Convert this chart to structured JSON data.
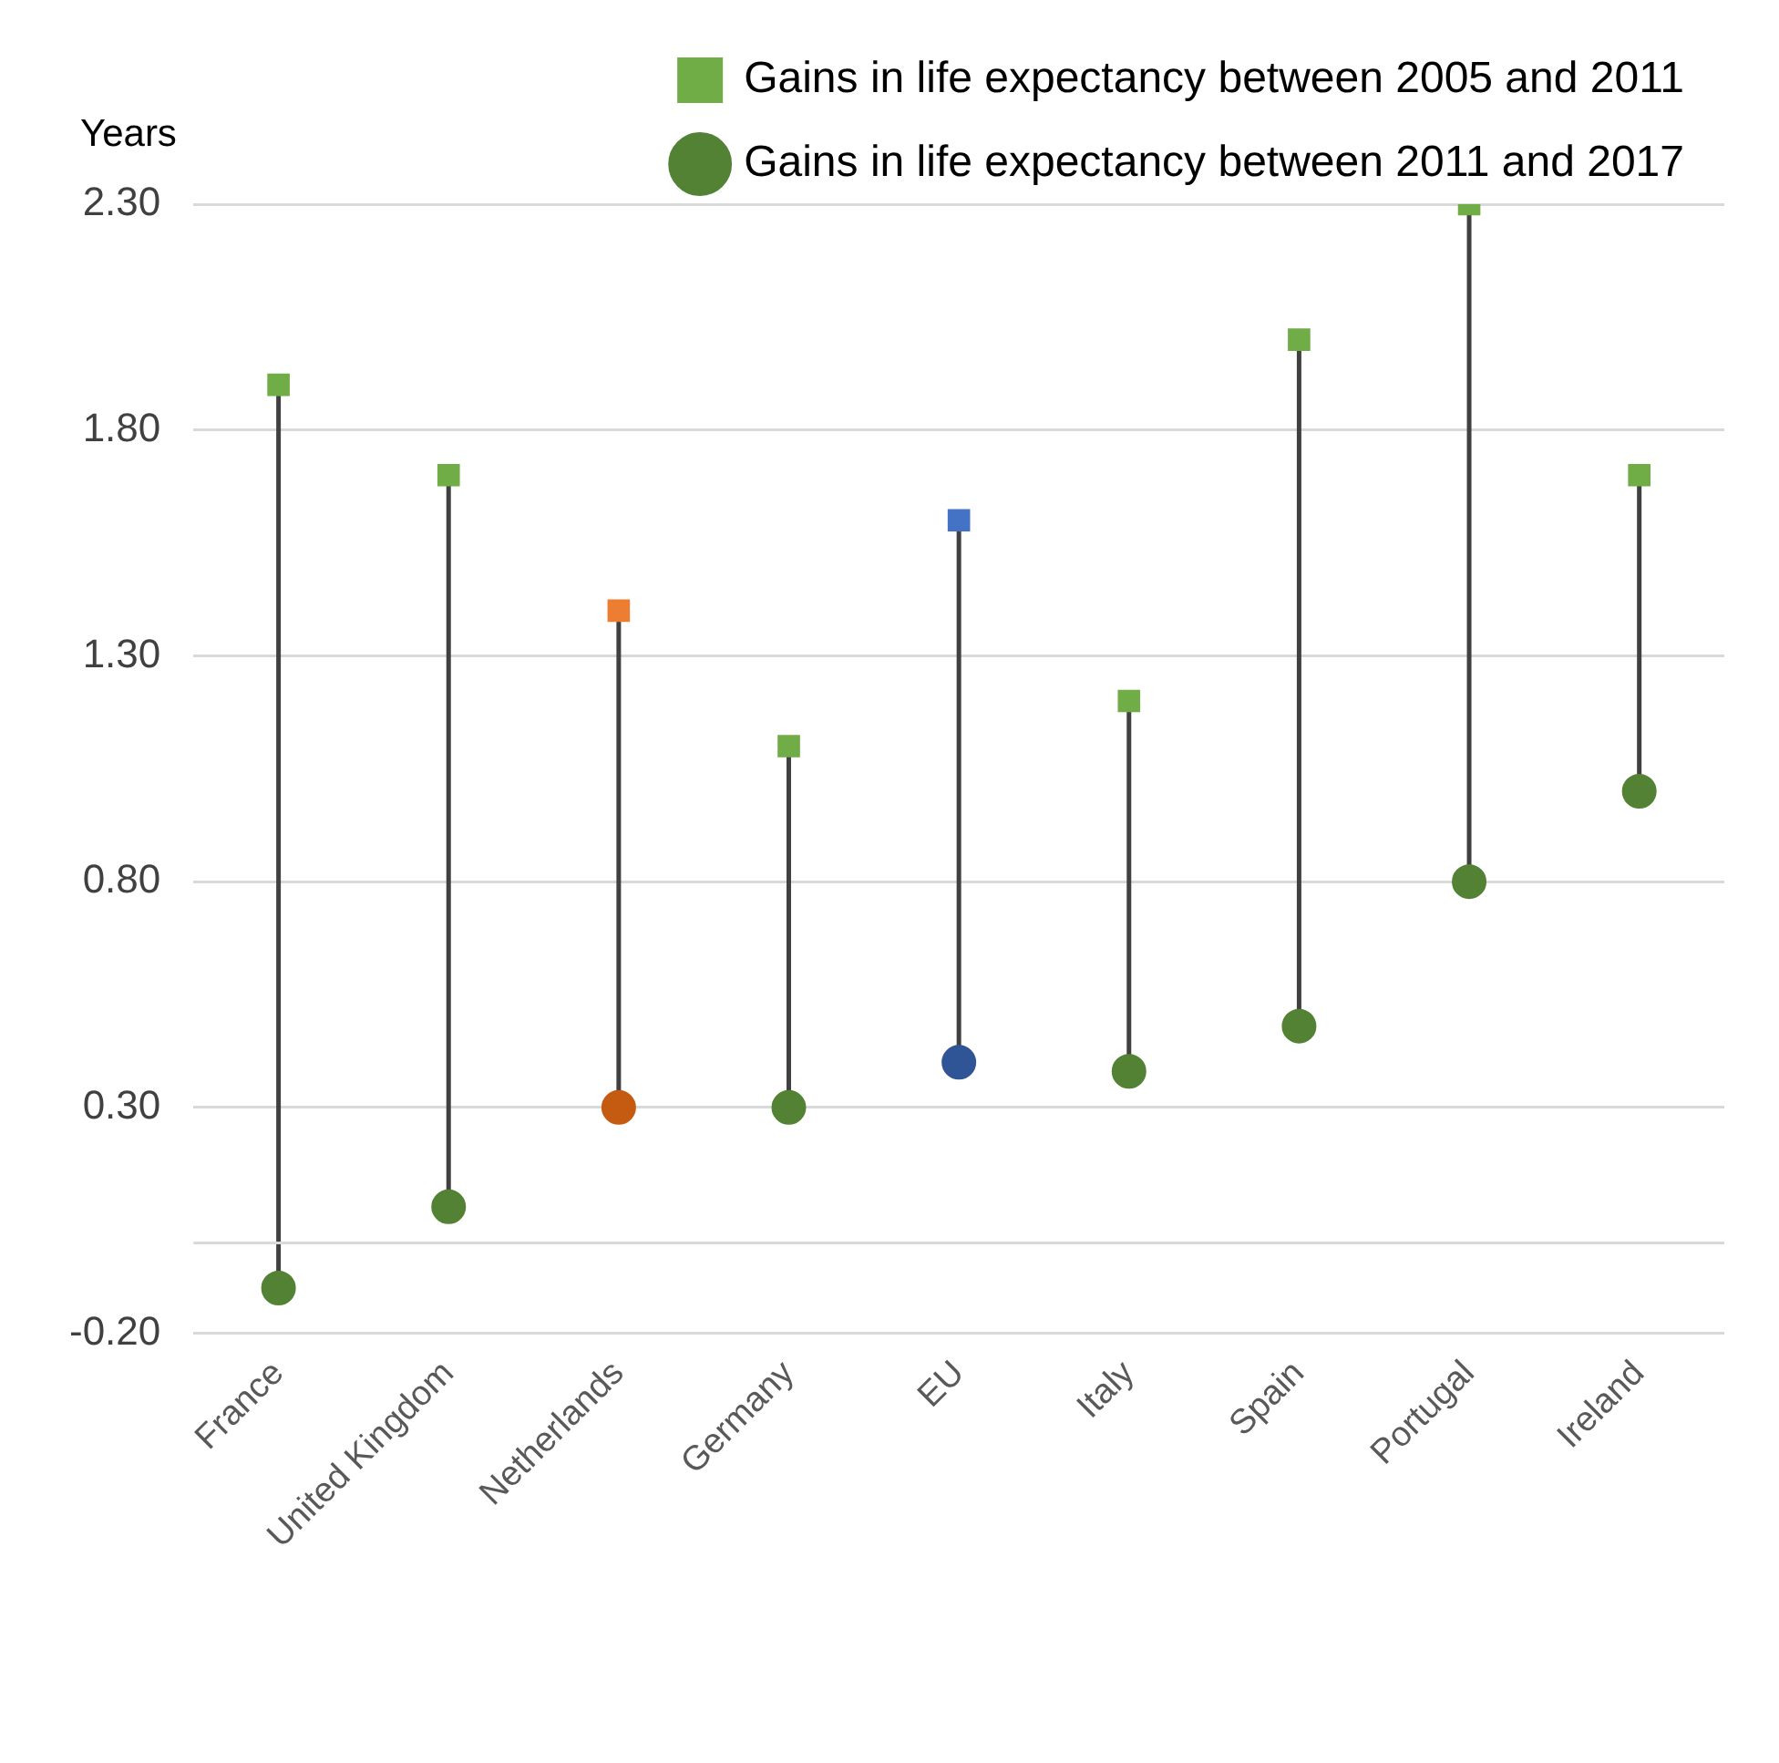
{
  "chart_data": {
    "type": "scatter",
    "ylabel": "Years",
    "categories": [
      "France",
      "United Kingdom",
      "Netherlands",
      "Germany",
      "EU",
      "Italy",
      "Spain",
      "Portugal",
      "Ireland"
    ],
    "series": [
      {
        "name": "Gains in life expectancy between 2005 and 2011",
        "color": "#70ad47",
        "marker": "square",
        "colors": [
          "#70ad47",
          "#70ad47",
          "#ed7d31",
          "#70ad47",
          "#4472c4",
          "#70ad47",
          "#70ad47",
          "#70ad47",
          "#70ad47"
        ],
        "values": [
          1.9,
          1.7,
          1.4,
          1.1,
          1.6,
          1.2,
          2.0,
          2.3,
          1.7
        ]
      },
      {
        "name": "Gains in life expectancy between 2011 and 2017",
        "color": "#548235",
        "marker": "circle",
        "colors": [
          "#548235",
          "#548235",
          "#c55a11",
          "#548235",
          "#2f5597",
          "#548235",
          "#548235",
          "#548235",
          "#548235"
        ],
        "values": [
          -0.1,
          0.08,
          0.3,
          0.3,
          0.4,
          0.38,
          0.48,
          0.8,
          1.0
        ]
      }
    ],
    "ylim": [
      -0.2,
      2.3
    ],
    "yticks": [
      {
        "value": -0.2,
        "label": "-0.20"
      },
      {
        "value": 0.3,
        "label": "0.30"
      },
      {
        "value": 0.8,
        "label": "0.80"
      },
      {
        "value": 1.3,
        "label": "1.30"
      },
      {
        "value": 1.8,
        "label": "1.80"
      },
      {
        "value": 2.3,
        "label": "2.30"
      }
    ],
    "grid": "y",
    "legend": "top right"
  }
}
